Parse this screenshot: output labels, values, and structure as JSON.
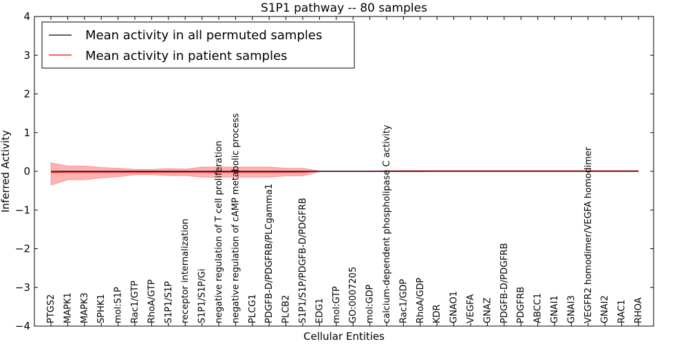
{
  "chart_data": {
    "type": "line",
    "title": "S1P1 pathway -- 80 samples",
    "xlabel": "Cellular Entities",
    "ylabel": "Inferred Activity",
    "ylim": [
      -4,
      4
    ],
    "yticks": [
      -4,
      -3,
      -2,
      -1,
      0,
      1,
      2,
      3,
      4
    ],
    "ytick_labels": [
      "−4",
      "−3",
      "−2",
      "−1",
      "0",
      "1",
      "2",
      "3",
      "4"
    ],
    "legend_position": "top-left",
    "categories": [
      "PTGS2",
      "MAPK1",
      "MAPK3",
      "SPHK1",
      "mol:S1P",
      "Rac1/GTP",
      "RhoA/GTP",
      "S1P1/S1P",
      "receptor internalization",
      "S1P1/S1P/Gi",
      "negative regulation of T cell proliferation",
      "negative regulation of cAMP metabolic process",
      "PLCG1",
      "PDGFB-D/PDGFRB/PLCgamma1",
      "PLCB2",
      "S1P1/S1P/PDGFB-D/PDGFRB",
      "EDG1",
      "mol:GTP",
      "GO:0007205",
      "mol:GDP",
      "calcium-dependent phospholipase C activity",
      "Rac1/GDP",
      "RhoA/GDP",
      "KDR",
      "GNAO1",
      "VEGFA",
      "GNAZ",
      "PDGFB-D/PDGFRB",
      "PDGFRB",
      "ABCC1",
      "GNAI1",
      "GNAI3",
      "VEGFR2 homodimer/VEGFA homodimer",
      "GNAI2",
      "RAC1",
      "RHOA"
    ],
    "series": [
      {
        "name": "Mean activity in all permuted samples",
        "color": "#000000",
        "values": [
          0,
          0,
          0,
          0,
          0,
          0,
          0,
          0,
          0,
          0,
          0,
          0,
          0,
          0,
          0,
          0,
          0,
          0,
          0,
          0,
          0,
          0,
          0,
          0,
          0,
          0,
          0,
          0,
          0,
          0,
          0,
          0,
          0,
          0,
          0,
          0
        ]
      },
      {
        "name": "Mean activity in patient samples",
        "color": "#ff0000",
        "values": [
          -0.03,
          -0.02,
          -0.02,
          -0.02,
          -0.02,
          -0.02,
          -0.02,
          -0.02,
          -0.02,
          -0.02,
          -0.02,
          -0.02,
          -0.02,
          -0.02,
          -0.02,
          -0.02,
          0,
          0,
          0,
          0,
          0,
          0.01,
          0.01,
          0.01,
          0.01,
          0.01,
          0.01,
          0.01,
          0.01,
          0.01,
          0.01,
          0.01,
          0.01,
          0.01,
          0.01,
          0.01
        ],
        "band_upper": [
          0.22,
          0.14,
          0.14,
          0.1,
          0.08,
          0.05,
          0.05,
          0.07,
          0.06,
          0.11,
          0.11,
          0.11,
          0.11,
          0.11,
          0.08,
          0.08,
          0.01,
          0.01,
          0.01,
          0.01,
          0.02,
          0.02,
          0.02,
          0.02,
          0.02,
          0.02,
          0.02,
          0.02,
          0.02,
          0.02,
          0.02,
          0.02,
          0.02,
          0.02,
          0.02,
          0.02
        ],
        "band_lower": [
          -0.36,
          -0.22,
          -0.22,
          -0.17,
          -0.14,
          -0.09,
          -0.09,
          -0.11,
          -0.11,
          -0.15,
          -0.15,
          -0.15,
          -0.15,
          -0.15,
          -0.12,
          -0.12,
          -0.01,
          -0.01,
          -0.01,
          -0.01,
          -0.01,
          -0.01,
          -0.01,
          0,
          0,
          0,
          0,
          0,
          0,
          0,
          0,
          0,
          0,
          0,
          0,
          0
        ],
        "band_color": "#ff0000"
      }
    ]
  }
}
